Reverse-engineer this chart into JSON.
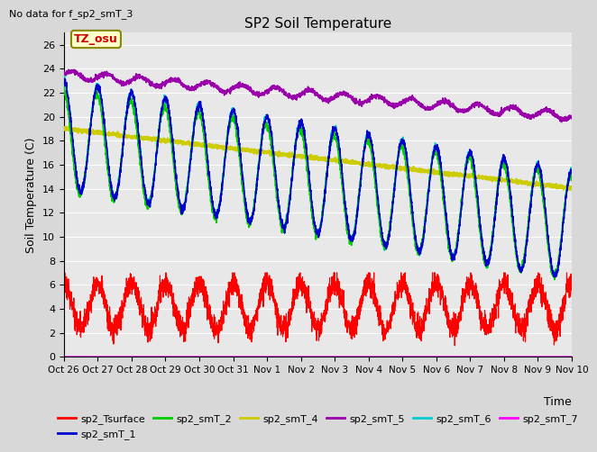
{
  "title": "SP2 Soil Temperature",
  "subtitle": "No data for f_sp2_smT_3",
  "ylabel": "Soil Temperature (C)",
  "xlabel": "Time",
  "tz_label": "TZ_osu",
  "ylim": [
    0,
    27
  ],
  "yticks": [
    0,
    2,
    4,
    6,
    8,
    10,
    12,
    14,
    16,
    18,
    20,
    22,
    24,
    26
  ],
  "background_color": "#e8e8e8",
  "plot_bg_color": "#e8e8e8",
  "series_colors": {
    "sp2_Tsurface": "#ff0000",
    "sp2_smT_1": "#0000cc",
    "sp2_smT_2": "#00cc00",
    "sp2_smT_4": "#cccc00",
    "sp2_smT_5": "#9900aa",
    "sp2_smT_6": "#00cccc",
    "sp2_smT_7": "#ff00ff"
  },
  "x_tick_labels": [
    "Oct 26",
    "Oct 27",
    "Oct 28",
    "Oct 29",
    "Oct 30",
    "Oct 31",
    "Nov 1",
    "Nov 2",
    "Nov 3",
    "Nov 4",
    "Nov 5",
    "Nov 6",
    "Nov 7",
    "Nov 8",
    "Nov 9",
    "Nov 10"
  ],
  "n_points": 3360,
  "duration_days": 15
}
